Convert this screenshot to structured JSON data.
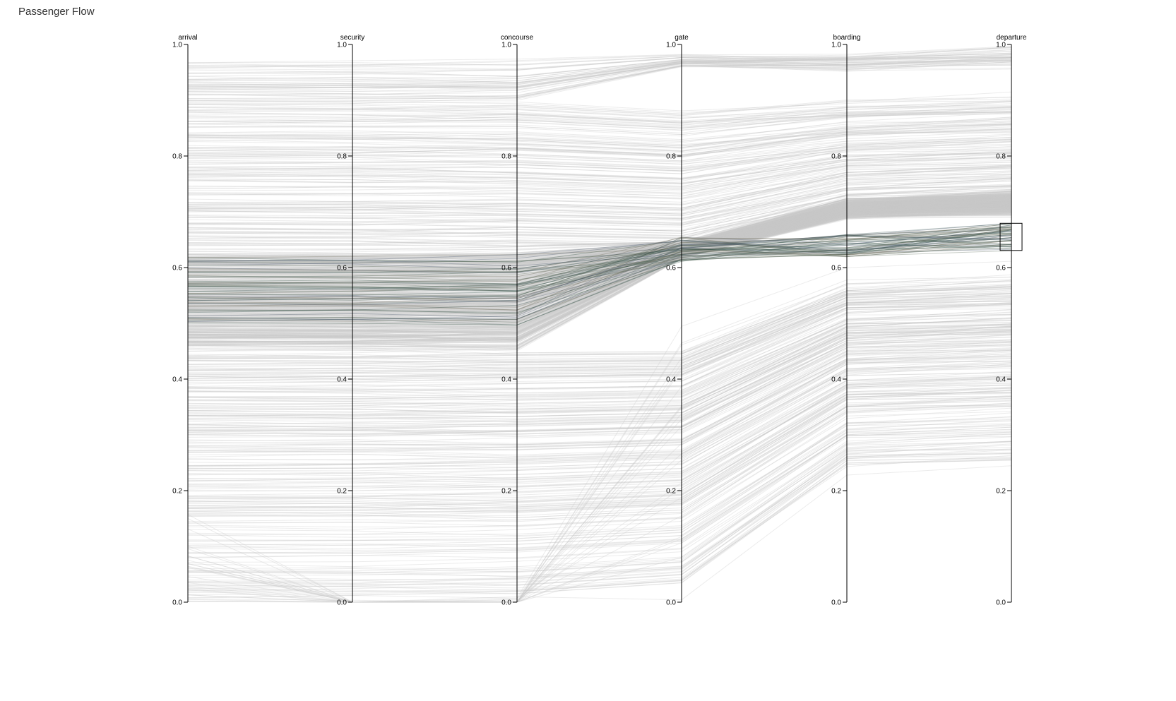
{
  "title": "Passenger Flow",
  "chart_data": {
    "type": "parallel-coordinates",
    "dimensions": [
      "arrival",
      "security",
      "concourse",
      "gate",
      "boarding",
      "departure"
    ],
    "axis_range": [
      0.0,
      1.0
    ],
    "ticks": [
      "0.0",
      "0.2",
      "0.4",
      "0.6",
      "0.8",
      "1.0"
    ],
    "tick_values": [
      0.0,
      0.2,
      0.4,
      0.6,
      0.8,
      1.0
    ],
    "brush": {
      "dimension": "departure",
      "range": [
        0.63,
        0.68
      ]
    },
    "colors": {
      "background_lines": "#c8c8c8",
      "highlight_lines": "#2f4a3c",
      "highlight_palette": [
        "#2f4a3c",
        "#3b5a52",
        "#4a5a6e",
        "#5b6b58",
        "#6e6a5a"
      ]
    },
    "series_summary": {
      "background": "many passengers spread across 0.0–1.0 at arrival converging to 0.24–1.0 at departure",
      "highlighted": "passengers with departure between 0.63 and 0.68"
    }
  }
}
